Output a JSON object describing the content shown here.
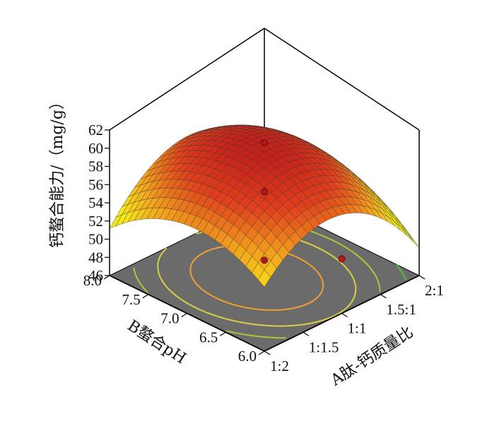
{
  "chart_data": {
    "type": "surface3d",
    "zlabel": "钙螯合能力/（mg/g）",
    "xlabel": "A肽-钙质量比",
    "ylabel": "B螯合pH",
    "x_ticks": [
      "1:2",
      "1:1.5",
      "1:1",
      "1.5:1",
      "2:1"
    ],
    "y_ticks": [
      "6.0",
      "6.5",
      "7.0",
      "7.5",
      "8.0"
    ],
    "z_ticks": [
      "46",
      "48",
      "50",
      "52",
      "54",
      "56",
      "58",
      "60",
      "62"
    ],
    "zlim": [
      46,
      62
    ],
    "surface_model": {
      "form": "quadratic",
      "intercept": 60.6,
      "x_linear": -0.9,
      "y_linear": 0.15,
      "x_quadratic": -5.8,
      "y_quadratic": -3.6,
      "interaction": 1.1
    },
    "grid_resolution": 25,
    "colormap": [
      "#2e8b3a",
      "#c8d82a",
      "#f7ec1a",
      "#f2a21d",
      "#e0401c",
      "#c01a1a"
    ],
    "floor_color": "#6b6b6b",
    "contour_colors": [
      "#f0a030",
      "#d8d040",
      "#a8c83a",
      "#58b848",
      "#2aa0d8"
    ],
    "design_points": [
      {
        "x": -1,
        "y": -1,
        "z": 56.0
      },
      {
        "x": 0,
        "y": 0,
        "z": 60.6
      },
      {
        "x": 0,
        "y": -1,
        "z": 52.0
      },
      {
        "x": 1,
        "y": 1,
        "z": 46.9
      }
    ]
  }
}
